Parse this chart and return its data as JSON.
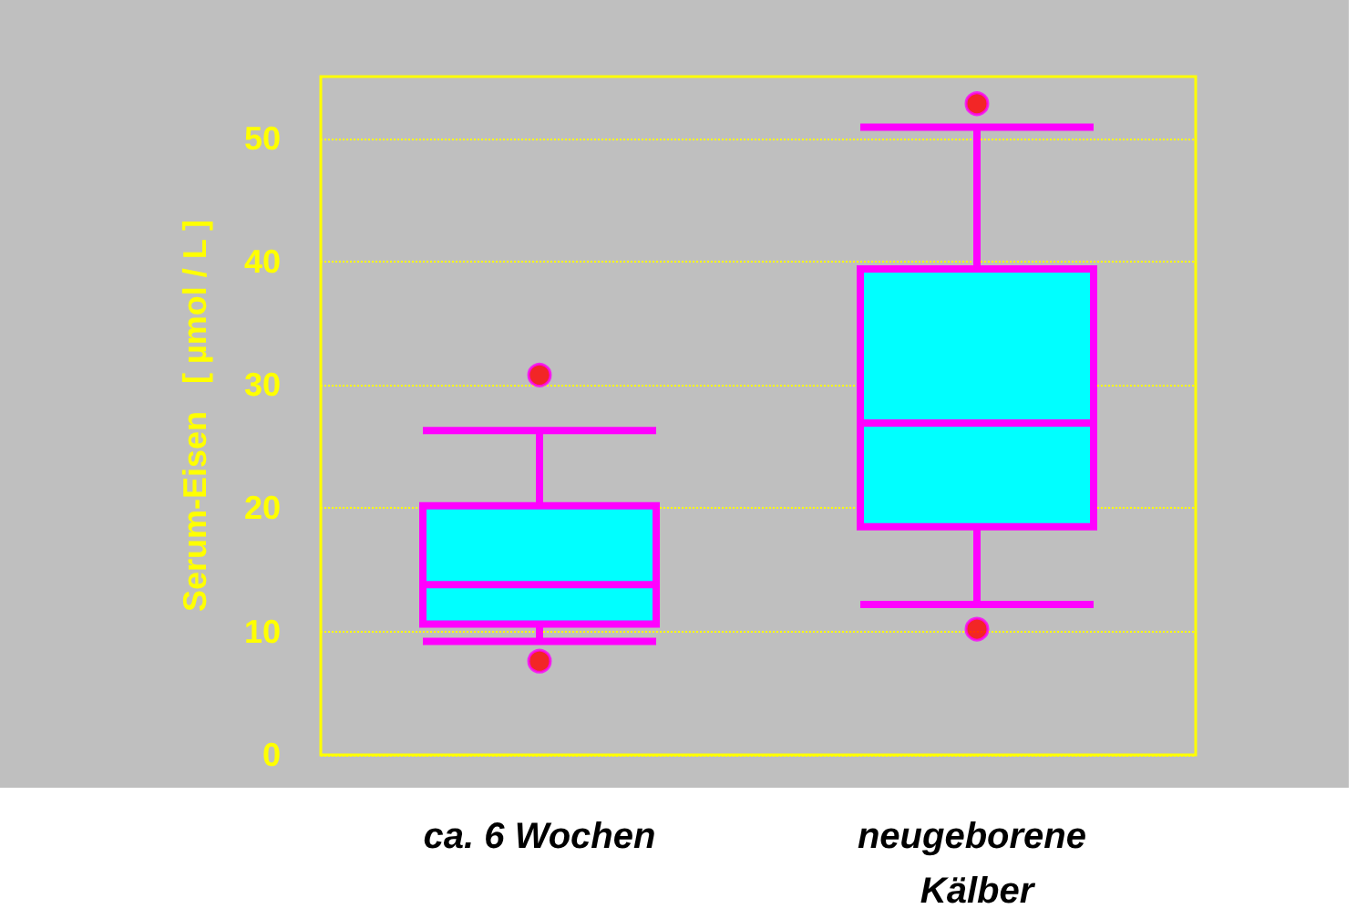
{
  "chart_data": {
    "type": "box",
    "ylabel": "Serum-Eisen   [ µmol / L ]",
    "categories": [
      "ca. 6 Wochen",
      "neugeborene Kälber"
    ],
    "series": [
      {
        "color": "#00ffff",
        "boxes": [
          {
            "low": 9.2,
            "q1": 10.6,
            "median": 13.8,
            "q3": 20.2,
            "high": 26.3,
            "outliers": [
              30.8,
              7.6
            ]
          },
          {
            "low": 12.2,
            "q1": 18.5,
            "median": 26.9,
            "q3": 39.4,
            "high": 50.9,
            "outliers": [
              52.8,
              10.2
            ]
          }
        ]
      }
    ],
    "ylim": [
      0,
      55
    ],
    "yticks": [
      0,
      10,
      20,
      30,
      40,
      50
    ],
    "grid": "y"
  }
}
